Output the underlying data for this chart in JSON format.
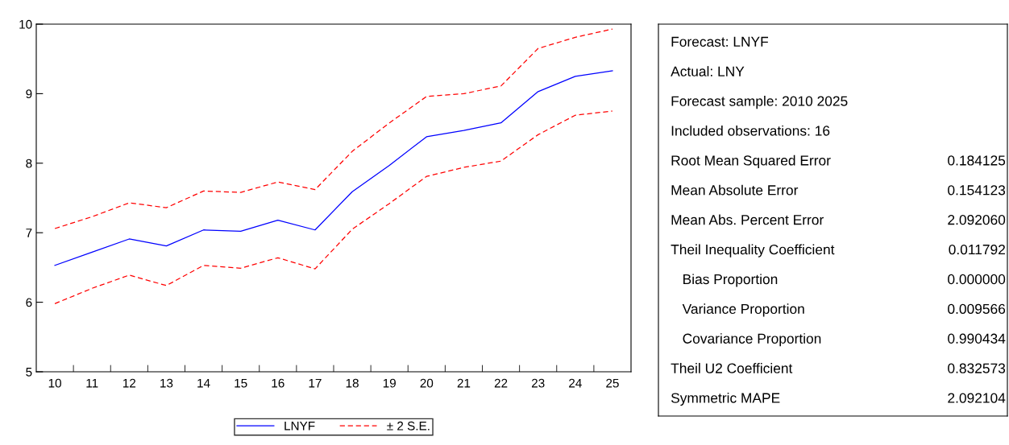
{
  "chart_data": [
    {
      "type": "line",
      "categories": [
        "10",
        "11",
        "12",
        "13",
        "14",
        "15",
        "16",
        "17",
        "18",
        "19",
        "20",
        "21",
        "22",
        "23",
        "24",
        "25"
      ],
      "ylim": [
        5,
        10
      ],
      "yticks": [
        5,
        6,
        7,
        8,
        9,
        10
      ],
      "grid": false,
      "legend": "bottom",
      "series": [
        {
          "name": "LNYF",
          "color": "#0000ff",
          "line_style": "solid",
          "values": [
            6.53,
            6.72,
            6.91,
            6.81,
            7.04,
            7.02,
            7.18,
            7.04,
            7.59,
            7.97,
            8.38,
            8.47,
            8.58,
            9.03,
            9.25,
            9.33
          ]
        },
        {
          "name": "± 2 S.E.",
          "color": "#ff0000",
          "line_style": "dashed",
          "values": [
            7.06,
            7.23,
            7.43,
            7.36,
            7.6,
            7.58,
            7.73,
            7.62,
            8.17,
            8.58,
            8.96,
            9.0,
            9.11,
            9.65,
            9.81,
            9.93
          ]
        },
        {
          "color": "#ff0000",
          "line_style": "dashed",
          "values": [
            5.98,
            6.2,
            6.39,
            6.24,
            6.53,
            6.49,
            6.64,
            6.48,
            7.05,
            7.42,
            7.81,
            7.94,
            8.03,
            8.41,
            8.69,
            8.75
          ]
        }
      ]
    },
    {
      "type": "other",
      "categories": [
        "Forecast: LNYF",
        "Actual: LNY",
        "Forecast sample: 2010 2025",
        "Included observations: 16",
        "Root Mean Squared Error",
        "Mean Absolute Error",
        "Mean Abs. Percent Error",
        "Theil Inequality Coefficient",
        "   Bias Proportion",
        "   Variance Proportion",
        "   Covariance Proportion",
        "Theil U2 Coefficient",
        "Symmetric MAPE"
      ],
      "value_labels": [
        null,
        null,
        null,
        null,
        "0.184125",
        "0.154123",
        "2.092060",
        "0.011792",
        "0.000000",
        "0.009566",
        "0.990434",
        "0.832573",
        "2.092104"
      ]
    }
  ]
}
